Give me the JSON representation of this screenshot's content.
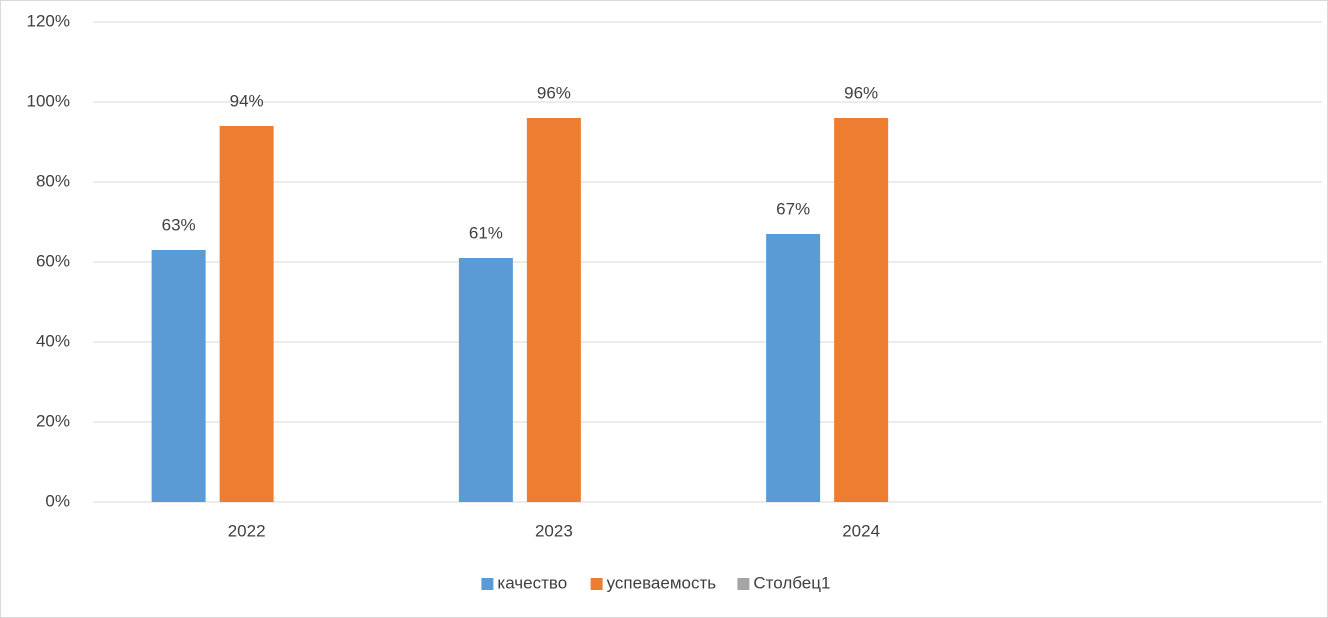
{
  "chart_data": {
    "type": "bar",
    "categories": [
      "2022",
      "2023",
      "2024",
      null
    ],
    "series": [
      {
        "name": "качество",
        "color": "#5b9bd5",
        "values": [
          63,
          61,
          67,
          null
        ],
        "value_labels": [
          "63%",
          "61%",
          "67%",
          null
        ]
      },
      {
        "name": "успеваемость",
        "color": "#ed7d31",
        "values": [
          94,
          96,
          96,
          null
        ],
        "value_labels": [
          "94%",
          "96%",
          "96%",
          null
        ]
      },
      {
        "name": "Столбец1",
        "color": "#a5a5a5",
        "values": [
          null,
          null,
          null,
          null
        ]
      }
    ],
    "ylim": [
      0,
      120
    ],
    "yticks": [
      {
        "value": 0,
        "label": "0%"
      },
      {
        "value": 20,
        "label": "20%"
      },
      {
        "value": 40,
        "label": "40%"
      },
      {
        "value": 60,
        "label": "60%"
      },
      {
        "value": 80,
        "label": "80%"
      },
      {
        "value": 100,
        "label": "100%"
      },
      {
        "value": 120,
        "label": "120%"
      }
    ],
    "grid": true,
    "legend": "bottom"
  }
}
